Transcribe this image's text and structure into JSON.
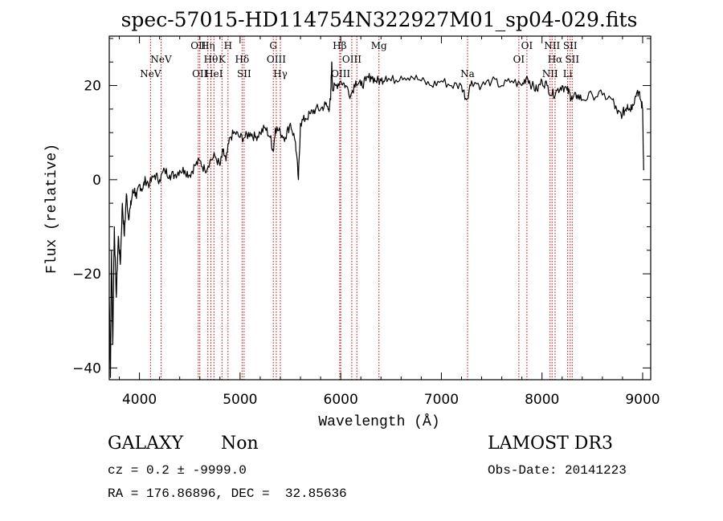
{
  "chart_data": {
    "type": "line",
    "title": "spec-57015-HD114754N322927M01_sp04-029.fits",
    "xlabel": "Wavelength (Å)",
    "ylabel": "Flux (relative)",
    "xlim": [
      3700,
      9080
    ],
    "ylim": [
      -42.5,
      30.5
    ],
    "xticks": [
      4000,
      5000,
      6000,
      7000,
      8000,
      9000
    ],
    "yticks": [
      -40,
      -20,
      0,
      20
    ],
    "grid": false,
    "line_color": "#000000",
    "marker_color": "#cc0000",
    "spectrum": {
      "name": "flux",
      "x": [
        3700,
        3712,
        3722,
        3735,
        3750,
        3770,
        3790,
        3810,
        3830,
        3850,
        3870,
        3890,
        3910,
        3930,
        3950,
        3970,
        4000,
        4030,
        4060,
        4100,
        4150,
        4200,
        4250,
        4300,
        4350,
        4400,
        4450,
        4500,
        4550,
        4600,
        4650,
        4700,
        4750,
        4800,
        4830,
        4860,
        4900,
        4950,
        5000,
        5050,
        5100,
        5150,
        5200,
        5250,
        5300,
        5330,
        5350,
        5400,
        5450,
        5500,
        5550,
        5580,
        5600,
        5650,
        5700,
        5750,
        5800,
        5850,
        5880,
        5900,
        5910,
        5920,
        5950,
        6000,
        6050,
        6100,
        6150,
        6200,
        6250,
        6300,
        6350,
        6400,
        6450,
        6500,
        6600,
        6700,
        6800,
        6900,
        7000,
        7100,
        7200,
        7250,
        7300,
        7400,
        7500,
        7600,
        7700,
        7800,
        7850,
        7900,
        7950,
        8000,
        8050,
        8100,
        8150,
        8200,
        8250,
        8280,
        8300,
        8350,
        8400,
        8500,
        8600,
        8700,
        8750,
        8800,
        8830,
        8850,
        8870,
        8900,
        8950,
        8980,
        9000,
        9010
      ],
      "y": [
        -25,
        -42,
        -15,
        -35,
        -10,
        -25,
        -12,
        -18,
        -5,
        -12,
        -3,
        -8,
        -6,
        -3,
        -2,
        -4,
        -1,
        -2,
        0,
        -1,
        1,
        0,
        2,
        1,
        1,
        2,
        2,
        1,
        3,
        4,
        2,
        4,
        5,
        3,
        6,
        4,
        9,
        10,
        9,
        9,
        10,
        9,
        10,
        11,
        9,
        6,
        11,
        10,
        9,
        12,
        8,
        0,
        12,
        13,
        14,
        15,
        15,
        16,
        15,
        17,
        25,
        19,
        20,
        21,
        20,
        18,
        21,
        20,
        21,
        22,
        21,
        21,
        22,
        21,
        22,
        22,
        21,
        20,
        21,
        20,
        20,
        17,
        21,
        20,
        21,
        20,
        21,
        20,
        22,
        20,
        19,
        21,
        20,
        18,
        19,
        20,
        19,
        18,
        17,
        18,
        17,
        18,
        18,
        17,
        14,
        14,
        15,
        16,
        15,
        16,
        19,
        17,
        15,
        2
      ]
    },
    "lines": [
      {
        "wl": 4110,
        "row": "low",
        "label": "NeV"
      },
      {
        "wl": 4215,
        "row": "mid",
        "label": "NeV"
      },
      {
        "wl": 4585,
        "row": "top",
        "label": "OII"
      },
      {
        "wl": 4600,
        "row": "low",
        "label": "OII"
      },
      {
        "wl": 4680,
        "row": "top",
        "label": "Hη"
      },
      {
        "wl": 4710,
        "row": "mid",
        "label": "Hθ"
      },
      {
        "wl": 4740,
        "row": "low",
        "label": "HeI"
      },
      {
        "wl": 4820,
        "row": "mid",
        "label": "K"
      },
      {
        "wl": 4880,
        "row": "top",
        "label": "H"
      },
      {
        "wl": 5020,
        "row": "mid",
        "label": "Hδ"
      },
      {
        "wl": 5040,
        "row": "low",
        "label": "SII"
      },
      {
        "wl": 5330,
        "row": "top",
        "label": "G"
      },
      {
        "wl": 5360,
        "row": "mid",
        "label": "OIII"
      },
      {
        "wl": 5400,
        "row": "low",
        "label": "Hγ"
      },
      {
        "wl": 5990,
        "row": "top",
        "label": "Hβ"
      },
      {
        "wl": 6000,
        "row": "low",
        "label": "OIII"
      },
      {
        "wl": 6110,
        "row": "mid",
        "label": "OIII"
      },
      {
        "wl": 6160,
        "row": "low",
        "label": ""
      },
      {
        "wl": 6380,
        "row": "top",
        "label": "Mg"
      },
      {
        "wl": 7260,
        "row": "low",
        "label": "Na"
      },
      {
        "wl": 7770,
        "row": "mid",
        "label": "OI"
      },
      {
        "wl": 7850,
        "row": "top",
        "label": "OI"
      },
      {
        "wl": 8100,
        "row": "top",
        "label": "NII"
      },
      {
        "wl": 8080,
        "row": "low",
        "label": "NII"
      },
      {
        "wl": 8130,
        "row": "mid",
        "label": "Hα"
      },
      {
        "wl": 8280,
        "row": "top",
        "label": "SII"
      },
      {
        "wl": 8300,
        "row": "mid",
        "label": "SII"
      },
      {
        "wl": 8255,
        "row": "low",
        "label": "Li"
      }
    ]
  },
  "info": {
    "class": "GALAXY",
    "subclass": "Non",
    "survey": "LAMOST DR3",
    "cz": "cz = 0.2 ± -9999.0",
    "obs_date": "Obs-Date: 20141223",
    "coords": "RA = 176.86896, DEC =  32.85636"
  }
}
